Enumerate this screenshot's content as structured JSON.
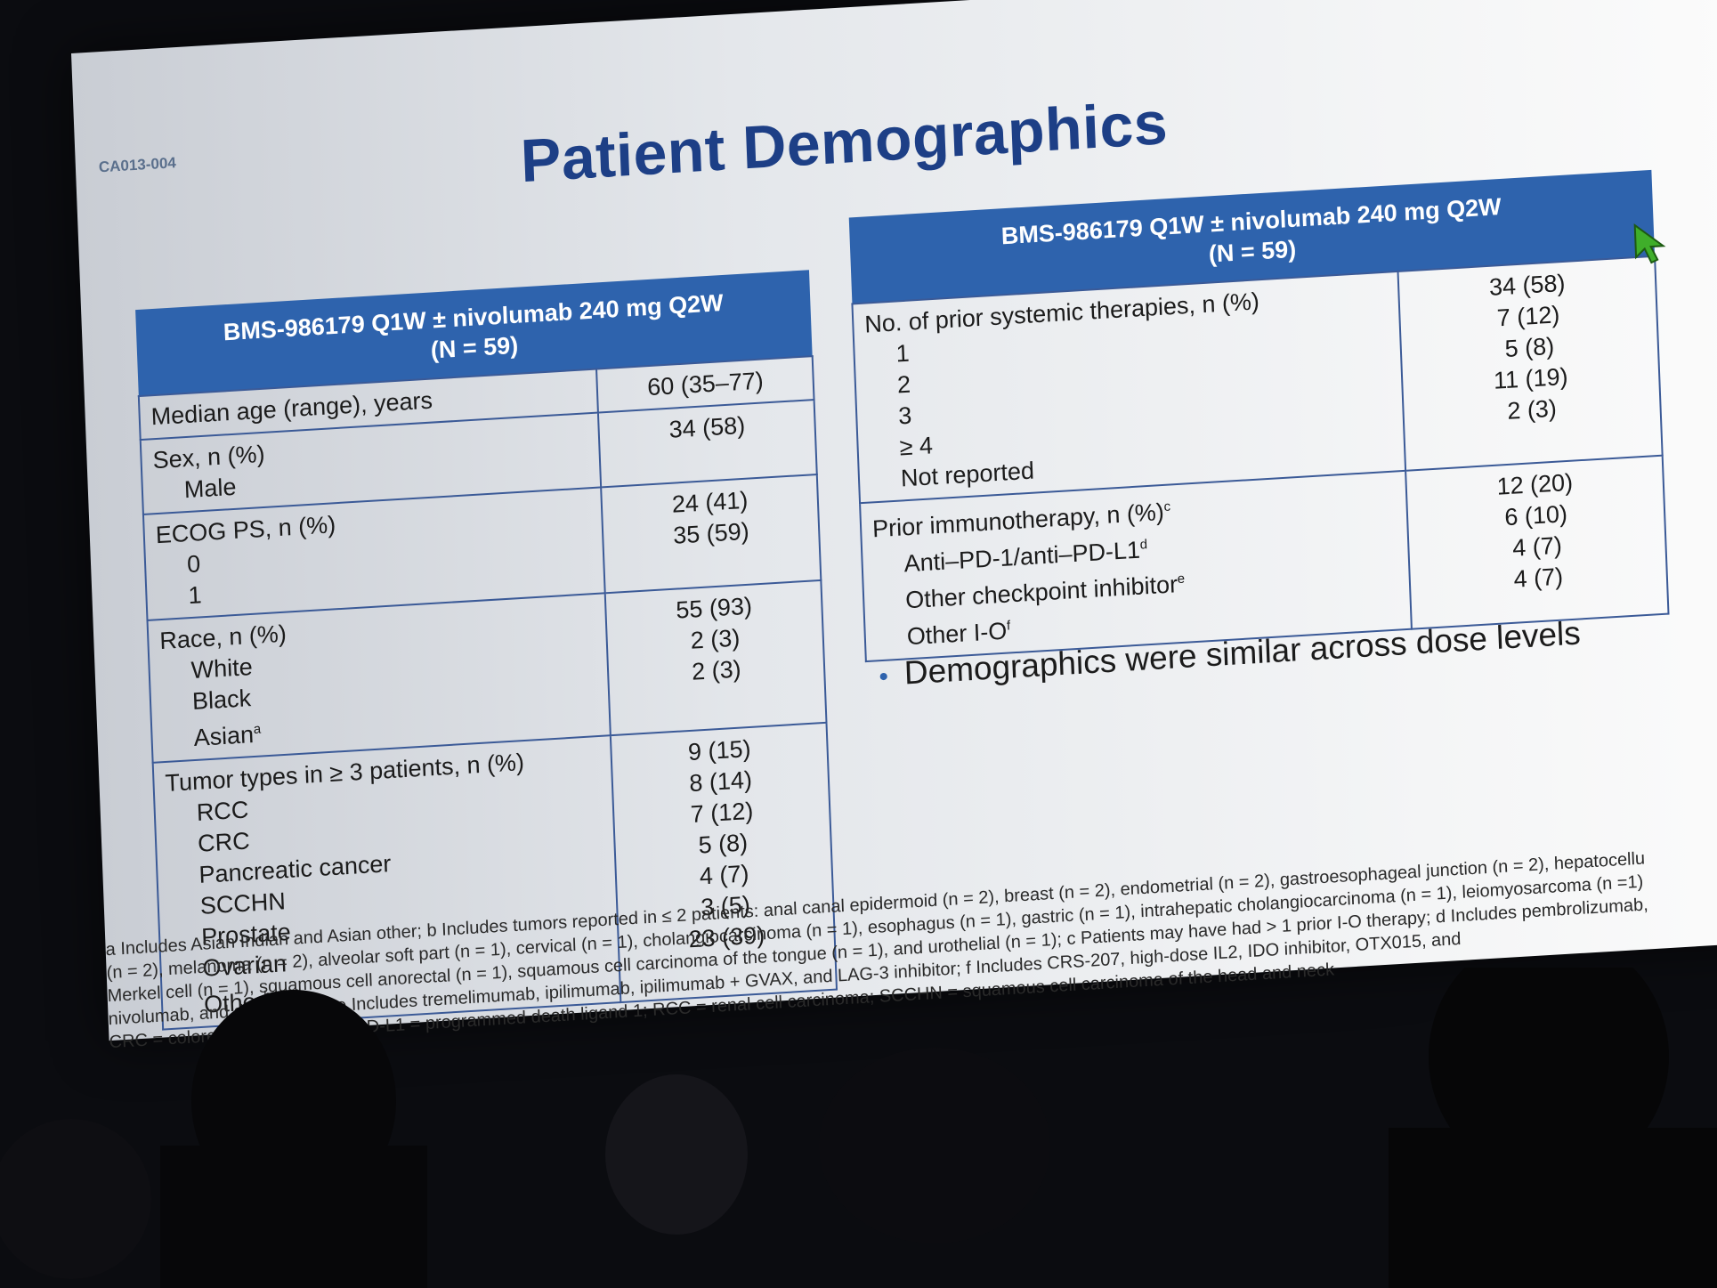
{
  "slide": {
    "id_label": "CA013-004",
    "title": "Patient Demographics",
    "bullet": "Demographics were similar across dose levels"
  },
  "left_table": {
    "header_line1": "BMS-986179 Q1W ± nivolumab 240 mg Q2W",
    "header_line2": "(N = 59)",
    "groups": [
      {
        "labels": [
          "Median age (range), years"
        ],
        "values": [
          "60 (35–77)"
        ]
      },
      {
        "labels": [
          "Sex, n (%)",
          "Male"
        ],
        "values": [
          "34 (58)"
        ]
      },
      {
        "labels": [
          "ECOG PS, n (%)",
          "0",
          "1"
        ],
        "values": [
          "24 (41)",
          "35 (59)"
        ]
      },
      {
        "labels": [
          "Race, n (%)",
          "White",
          "Black",
          "Asian"
        ],
        "values": [
          "55 (93)",
          "2 (3)",
          "2 (3)"
        ]
      },
      {
        "labels": [
          "Tumor types in ≥ 3 patients, n (%)",
          "RCC",
          "CRC",
          "Pancreatic cancer",
          "SCCHN",
          "Prostate",
          "Ovarian",
          "Other"
        ],
        "values": [
          "9 (15)",
          "8 (14)",
          "7 (12)",
          "5 (8)",
          "4 (7)",
          "3 (5)",
          "23 (39)"
        ]
      }
    ],
    "sup_asian": "a",
    "sup_other": "b"
  },
  "right_table": {
    "header_line1": "BMS-986179 Q1W ± nivolumab 240 mg Q2W",
    "header_line2": "(N = 59)",
    "groups": [
      {
        "labels": [
          "No. of prior systemic therapies, n (%)",
          "1",
          "2",
          "3",
          "≥ 4",
          "Not reported"
        ],
        "values": [
          "34 (58)",
          "7 (12)",
          "5 (8)",
          "11 (19)",
          "2 (3)"
        ]
      },
      {
        "labels": [
          "Prior immunotherapy, n (%)",
          "Anti–PD-1/anti–PD-L1",
          "Other checkpoint inhibitor",
          "Other I-O"
        ],
        "values": [
          "12 (20)",
          "6 (10)",
          "4 (7)",
          "4 (7)"
        ]
      }
    ],
    "sup_prior_io": "c",
    "sup_pd1": "d",
    "sup_checkpoint": "e",
    "sup_other_io": "f"
  },
  "footnotes": [
    "a Includes Asian Indian and Asian other; b Includes tumors reported in ≤ 2 patients: anal canal epidermoid (n = 2), breast (n = 2), endometrial (n = 2), gastroesophageal junction (n = 2), hepatocellu",
    "(n = 2), melanoma (n = 2), alveolar soft part (n = 1), cervical (n = 1), cholangiocarcinoma (n = 1), esophagus (n = 1), gastric (n = 1), intrahepatic cholangiocarcinoma (n = 1), leiomyosarcoma (n =1)",
    "Merkel cell (n = 1), squamous cell anorectal (n = 1), squamous cell carcinoma of the tongue (n = 1), and urothelial (n = 1); c Patients may have had > 1 prior I-O therapy; d Includes pembrolizumab,",
    "nivolumab, and durvalumab; e Includes tremelimumab, ipilimumab, ipilimumab + GVAX, and LAG-3 inhibitor; f Includes CRS-207, high-dose IL2, IDO inhibitor, OTX015, and",
    "CRC = colorectal; ... oncology; PD-L1 = programmed death ligand 1; RCC = renal cell carcinoma; SCCHN = squamous cell carcinoma of the head and neck"
  ],
  "colors": {
    "header_blue": "#2e63ad",
    "title_blue": "#1d3f86",
    "cursor_green": "#3fae2a"
  },
  "icons": {
    "cursor": "mouse-pointer-icon"
  }
}
